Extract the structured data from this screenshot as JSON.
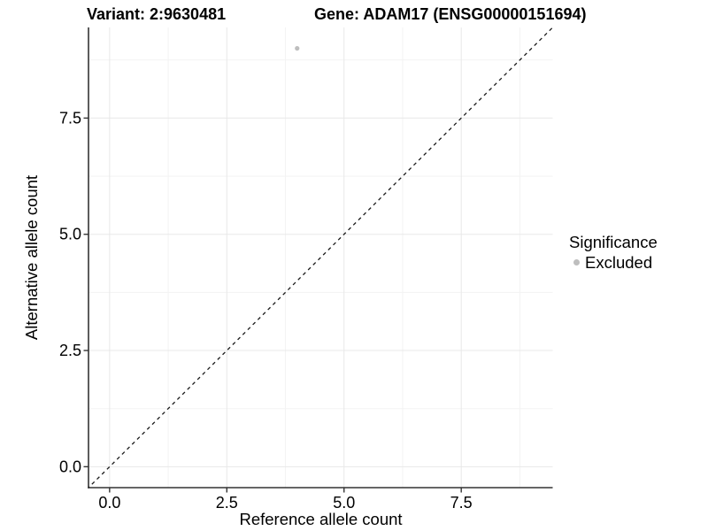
{
  "figure": {
    "variant_title": "Variant: 2:9630481",
    "gene_title": "Gene: ADAM17 (ENSG00000151694)"
  },
  "axes": {
    "x_title": "Reference allele count",
    "y_title": "Alternative allele count"
  },
  "legend": {
    "title": "Significance",
    "items": [
      {
        "label": "Excluded",
        "color": "#bebebe"
      }
    ]
  },
  "colors": {
    "background": "#ffffff",
    "text": "#000000",
    "point": "#bebebe",
    "grid_major": "#e8e8e8",
    "grid_minor": "#f3f3f3",
    "axis_line": "#333333",
    "tick_mark": "#333333",
    "reference_line": "#1a1a1a"
  },
  "chart_data": {
    "type": "scatter",
    "title": "Variant: 2:9630481 | Gene: ADAM17 (ENSG00000151694)",
    "xlabel": "Reference allele count",
    "ylabel": "Alternative allele count",
    "xlim": [
      -0.45,
      9.45
    ],
    "ylim": [
      -0.45,
      9.45
    ],
    "x_ticks": {
      "values": [
        0,
        2.5,
        5,
        7.5
      ],
      "labels": [
        "0.0",
        "2.5",
        "5.0",
        "7.5"
      ]
    },
    "y_ticks": {
      "values": [
        0,
        2.5,
        5,
        7.5
      ],
      "labels": [
        "0.0",
        "2.5",
        "5.0",
        "7.5"
      ]
    },
    "x_minor_ticks": [
      1.25,
      3.75,
      6.25,
      8.75
    ],
    "y_minor_ticks": [
      1.25,
      3.75,
      6.25,
      8.75
    ],
    "grid": true,
    "legend_position": "right",
    "series": [
      {
        "name": "Excluded",
        "color": "#bebebe",
        "points": [
          {
            "x": 4,
            "y": 9
          }
        ]
      }
    ],
    "reference_line": {
      "slope": 1,
      "intercept": 0,
      "linetype": "dashed",
      "color": "#1a1a1a"
    }
  }
}
